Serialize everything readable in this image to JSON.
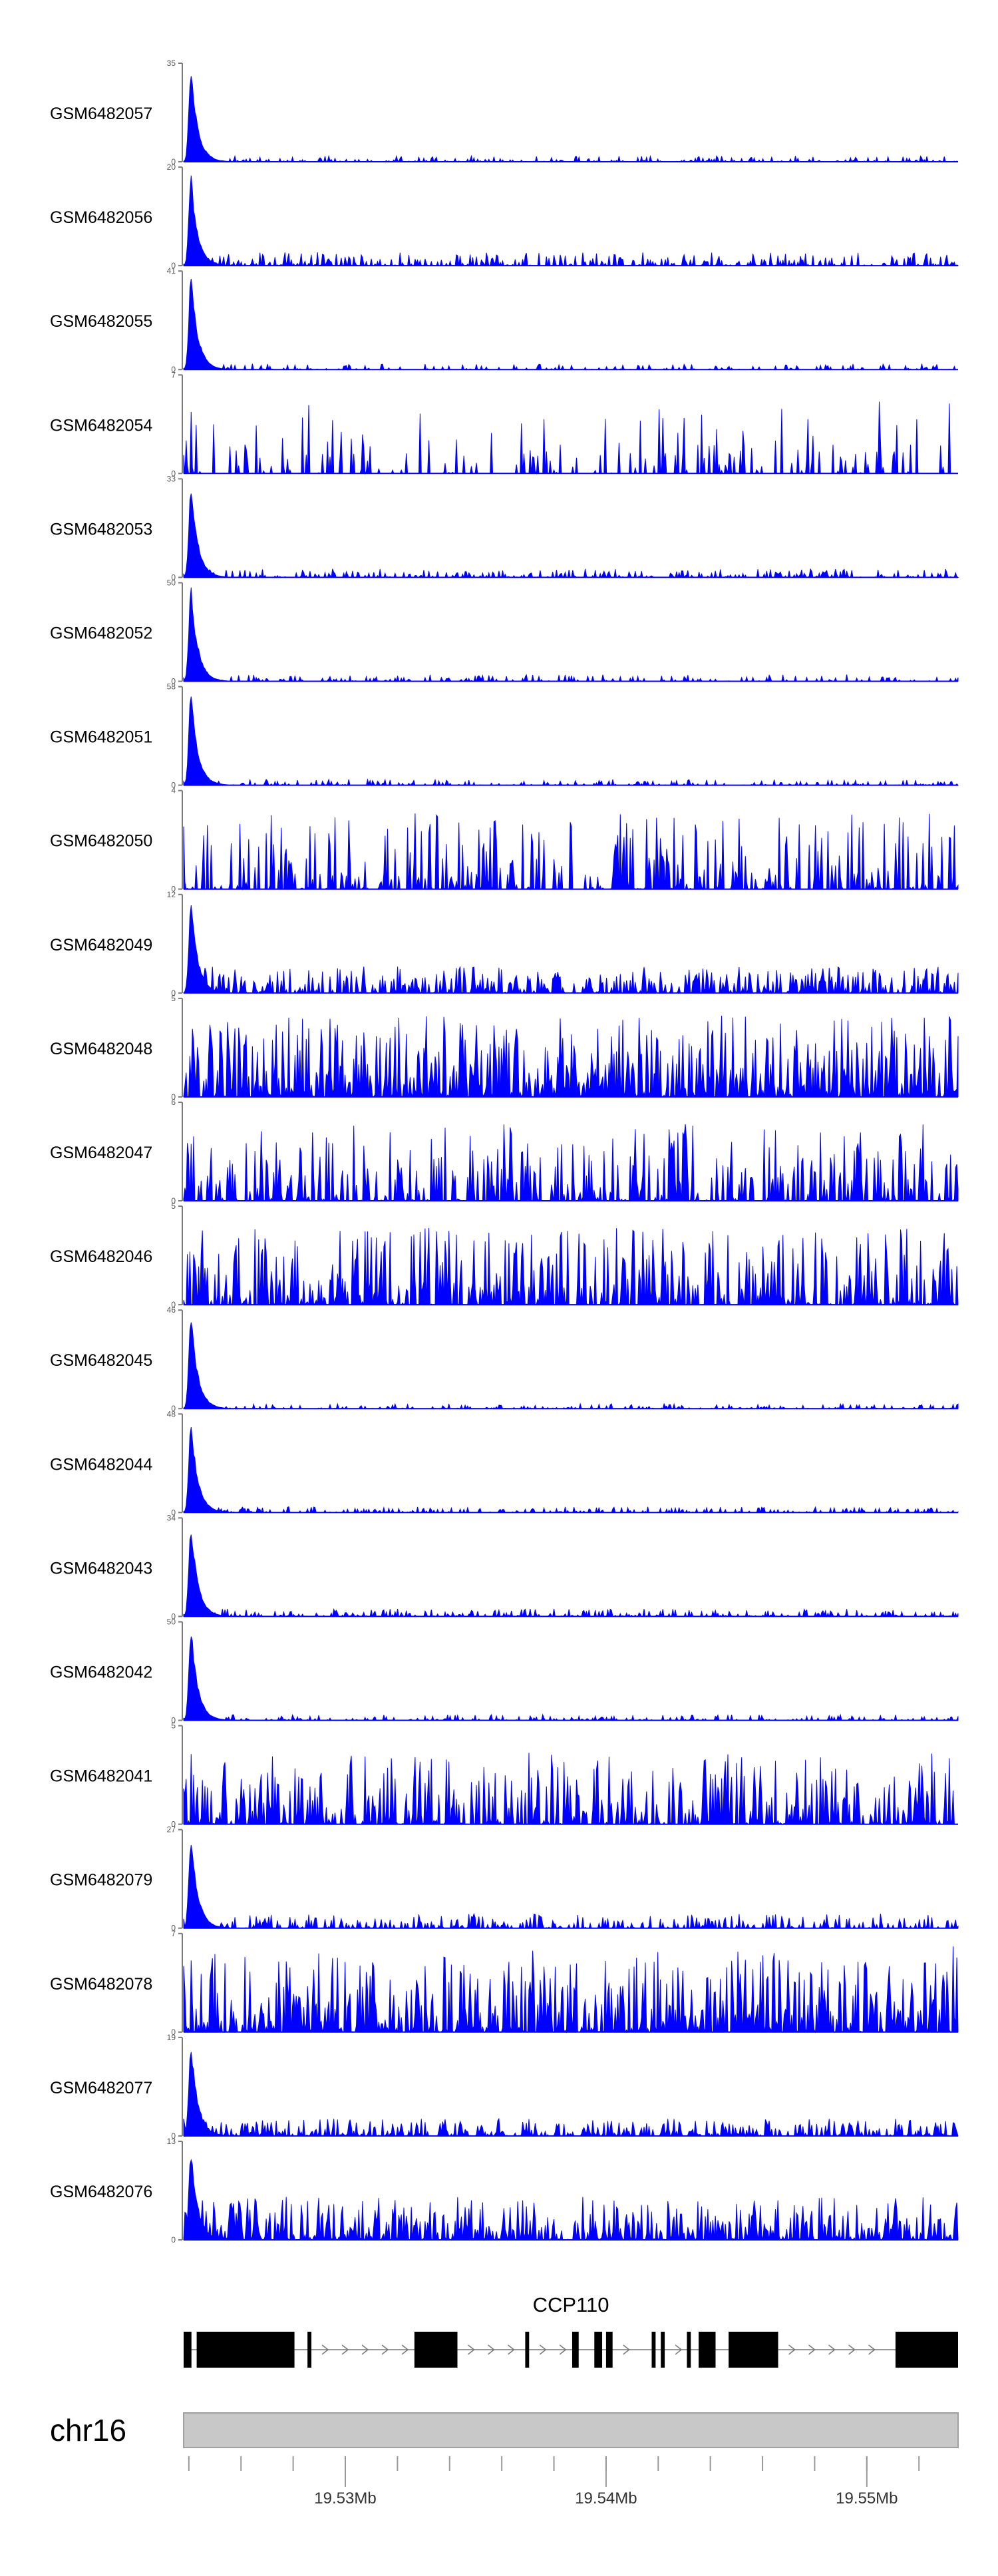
{
  "chart_data": {
    "type": "area",
    "title": "",
    "chromosome": "chr16",
    "gene": "CCP110",
    "x_ticks": [
      "19.53Mb",
      "19.54Mb",
      "19.55Mb"
    ],
    "x_tick_values": [
      19.53,
      19.54,
      19.55
    ],
    "xlim": [
      19.5238,
      19.5535
    ],
    "grid": false,
    "legend": "none",
    "fill_color": "#0000ff",
    "series": [
      {
        "name": "GSM6482057",
        "ymax": 35,
        "ymin": 0,
        "peak_type": "promoter",
        "peak_height": 1.0,
        "noise": 0.06,
        "noise_density": 0.45,
        "seed": 11
      },
      {
        "name": "GSM6482056",
        "ymax": 20,
        "ymin": 0,
        "peak_type": "promoter",
        "peak_height": 0.95,
        "noise": 0.14,
        "noise_density": 0.55,
        "seed": 12
      },
      {
        "name": "GSM6482055",
        "ymax": 41,
        "ymin": 0,
        "peak_type": "promoter",
        "peak_height": 1.0,
        "noise": 0.06,
        "noise_density": 0.35,
        "seed": 13
      },
      {
        "name": "GSM6482054",
        "ymax": 7,
        "ymin": 0,
        "peak_type": "sparse",
        "peak_height": 0.75,
        "noise": 0.72,
        "noise_density": 0.25,
        "seed": 14
      },
      {
        "name": "GSM6482053",
        "ymax": 33,
        "ymin": 0,
        "peak_type": "promoter",
        "peak_height": 1.0,
        "noise": 0.09,
        "noise_density": 0.5,
        "seed": 15
      },
      {
        "name": "GSM6482052",
        "ymax": 50,
        "ymin": 0,
        "peak_type": "promoter",
        "peak_height": 1.0,
        "noise": 0.07,
        "noise_density": 0.45,
        "seed": 16
      },
      {
        "name": "GSM6482051",
        "ymax": 58,
        "ymin": 0,
        "peak_type": "promoter",
        "peak_height": 1.0,
        "noise": 0.06,
        "noise_density": 0.4,
        "seed": 17
      },
      {
        "name": "GSM6482050",
        "ymax": 4,
        "ymin": 0,
        "peak_type": "sparse",
        "peak_height": 0.6,
        "noise": 0.8,
        "noise_density": 0.55,
        "seed": 18
      },
      {
        "name": "GSM6482049",
        "ymax": 12,
        "ymin": 0,
        "peak_type": "promoter",
        "peak_height": 0.98,
        "noise": 0.28,
        "noise_density": 0.7,
        "seed": 19
      },
      {
        "name": "GSM6482048",
        "ymax": 5,
        "ymin": 0,
        "peak_type": "dense",
        "peak_height": 0.8,
        "noise": 0.85,
        "noise_density": 0.9,
        "seed": 20
      },
      {
        "name": "GSM6482047",
        "ymax": 6,
        "ymin": 0,
        "peak_type": "dense",
        "peak_height": 0.75,
        "noise": 0.8,
        "noise_density": 0.55,
        "seed": 21
      },
      {
        "name": "GSM6482046",
        "ymax": 5,
        "ymin": 0,
        "peak_type": "dense",
        "peak_height": 0.55,
        "noise": 0.8,
        "noise_density": 0.7,
        "seed": 22
      },
      {
        "name": "GSM6482045",
        "ymax": 46,
        "ymin": 0,
        "peak_type": "promoter",
        "peak_height": 1.0,
        "noise": 0.05,
        "noise_density": 0.35,
        "seed": 23
      },
      {
        "name": "GSM6482044",
        "ymax": 48,
        "ymin": 0,
        "peak_type": "promoter",
        "peak_height": 1.0,
        "noise": 0.06,
        "noise_density": 0.45,
        "seed": 24
      },
      {
        "name": "GSM6482043",
        "ymax": 34,
        "ymin": 0,
        "peak_type": "promoter",
        "peak_height": 1.0,
        "noise": 0.08,
        "noise_density": 0.55,
        "seed": 25
      },
      {
        "name": "GSM6482042",
        "ymax": 50,
        "ymin": 0,
        "peak_type": "promoter",
        "peak_height": 1.0,
        "noise": 0.06,
        "noise_density": 0.45,
        "seed": 26
      },
      {
        "name": "GSM6482041",
        "ymax": 5,
        "ymin": 0,
        "peak_type": "dense",
        "peak_height": 0.55,
        "noise": 0.75,
        "noise_density": 0.7,
        "seed": 27
      },
      {
        "name": "GSM6482079",
        "ymax": 27,
        "ymin": 0,
        "peak_type": "promoter",
        "peak_height": 1.0,
        "noise": 0.15,
        "noise_density": 0.6,
        "seed": 28
      },
      {
        "name": "GSM6482078",
        "ymax": 7,
        "ymin": 0,
        "peak_type": "dense",
        "peak_height": 0.9,
        "noise": 0.85,
        "noise_density": 0.85,
        "seed": 29
      },
      {
        "name": "GSM6482077",
        "ymax": 19,
        "ymin": 0,
        "peak_type": "promoter",
        "peak_height": 1.0,
        "noise": 0.18,
        "noise_density": 0.75,
        "seed": 30
      },
      {
        "name": "GSM6482076",
        "ymax": 13,
        "ymin": 0,
        "peak_type": "promoter",
        "peak_height": 0.95,
        "noise": 0.45,
        "noise_density": 0.85,
        "seed": 31
      }
    ],
    "gene_model": {
      "name": "CCP110",
      "strand": "+",
      "exons": [
        [
          19.5238,
          19.5241
        ],
        [
          19.5243,
          19.52805
        ],
        [
          19.52855,
          19.5287
        ],
        [
          19.53265,
          19.5343
        ],
        [
          19.5369,
          19.53705
        ],
        [
          19.5387,
          19.53895
        ],
        [
          19.53955,
          19.53985
        ],
        [
          19.54,
          19.54025
        ],
        [
          19.54175,
          19.5419
        ],
        [
          19.5421,
          19.54225
        ],
        [
          19.5431,
          19.54325
        ],
        [
          19.54355,
          19.5442
        ],
        [
          19.5447,
          19.5466
        ],
        [
          19.5511,
          19.5535
        ]
      ]
    }
  }
}
